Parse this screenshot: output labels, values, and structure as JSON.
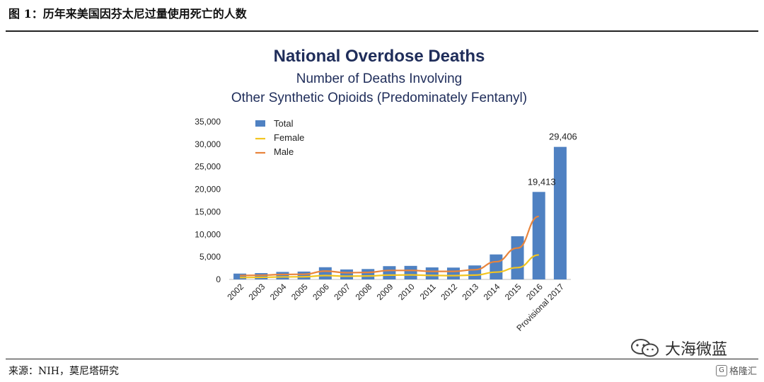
{
  "figure": {
    "caption": "图 1：历年来美国因芬太尼过量使用死亡的人数",
    "source": "来源：NIH，莫尼塔研究",
    "watermark": "大海微蓝",
    "corner_mark": "格隆汇",
    "corner_glyph": "G"
  },
  "colors": {
    "title": "#1f2d5a",
    "bar": "#4f81c2",
    "female": "#f2c521",
    "male": "#e8843c",
    "axis_text": "#222222"
  },
  "chart_data": {
    "type": "bar",
    "title": "National Overdose Deaths",
    "subtitle_lines": [
      "Number of Deaths Involving",
      "Other Synthetic Opioids (Predominately Fentanyl)"
    ],
    "categories": [
      "2002",
      "2003",
      "2004",
      "2005",
      "2006",
      "2007",
      "2008",
      "2009",
      "2010",
      "2011",
      "2012",
      "2013",
      "2014",
      "2015",
      "2016",
      "Provisional 2017"
    ],
    "ylim": [
      0,
      35000
    ],
    "y_ticks": [
      0,
      5000,
      10000,
      15000,
      20000,
      25000,
      30000,
      35000
    ],
    "y_tick_labels": [
      "0",
      "5,000",
      "10,000",
      "15,000",
      "20,000",
      "25,000",
      "30,000",
      "35,000"
    ],
    "grid": false,
    "legend_position": "top-left",
    "series": [
      {
        "name": "Total",
        "kind": "bar",
        "values": [
          1295,
          1400,
          1664,
          1742,
          2707,
          2213,
          2306,
          2946,
          3007,
          2666,
          2628,
          3105,
          5544,
          9580,
          19413,
          29406
        ]
      },
      {
        "name": "Female",
        "kind": "line",
        "values": [
          420,
          470,
          560,
          590,
          860,
          720,
          760,
          960,
          1000,
          880,
          840,
          960,
          1620,
          2620,
          5430,
          null
        ]
      },
      {
        "name": "Male",
        "kind": "line",
        "values": [
          870,
          930,
          1100,
          1150,
          1850,
          1490,
          1550,
          1990,
          2000,
          1780,
          1790,
          2150,
          3930,
          6960,
          13980,
          null
        ]
      }
    ],
    "data_labels": [
      {
        "category": "2016",
        "text": "19,413"
      },
      {
        "category": "Provisional 2017",
        "text": "29,406"
      }
    ]
  }
}
